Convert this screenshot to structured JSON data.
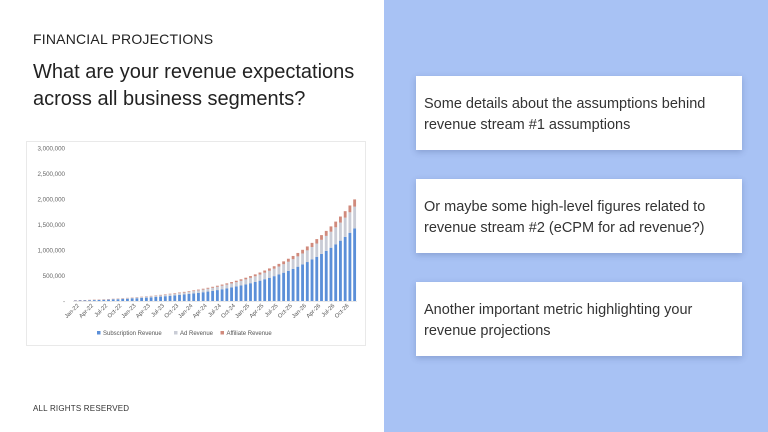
{
  "slide": {
    "kicker": "FINANCIAL PROJECTIONS",
    "title": "What are your revenue expectations across all business segments?",
    "footer": "ALL RIGHTS RESERVED"
  },
  "cards": [
    {
      "text": "Some details about the assumptions behind revenue stream #1 assumptions"
    },
    {
      "text": "Or maybe some high-level figures related to revenue stream #2 (eCPM for ad revenue?)"
    },
    {
      "text": "Another important metric highlighting your revenue projections"
    }
  ],
  "colors": {
    "background_right": "#a8c2f4",
    "subscription": "#5b8fd8",
    "ad": "#c9ccd6",
    "affiliate": "#d08a7c"
  },
  "chart_data": {
    "type": "bar",
    "stacked": true,
    "ylim": [
      0,
      3000000
    ],
    "y_ticks": [
      "3,000,000",
      "2,500,000",
      "2,000,000",
      "1,500,000",
      "1,000,000",
      "500,000",
      "-"
    ],
    "x_tick_labels": [
      "Jan-22",
      "Apr-22",
      "Jul-22",
      "Oct-22",
      "Jan-23",
      "Apr-23",
      "Jul-23",
      "Oct-23",
      "Jan-24",
      "Apr-24",
      "Jul-24",
      "Oct-24",
      "Jan-25",
      "Apr-25",
      "Jul-25",
      "Oct-25",
      "Jan-26",
      "Apr-26",
      "Jul-26",
      "Oct-26"
    ],
    "x_start": "Jan-22",
    "x_end": "Dec-26",
    "legend": [
      "Subscription Revenue",
      "Ad Revenue",
      "Affiliate Revenue"
    ],
    "legend_position": "bottom",
    "grid": false,
    "series": [
      {
        "name": "Subscription Revenue",
        "values": [
          10000,
          12000,
          14000,
          16000,
          18000,
          21000,
          24000,
          27000,
          31000,
          35000,
          39000,
          44000,
          49000,
          54000,
          60000,
          66000,
          72000,
          79000,
          86000,
          94000,
          102000,
          110000,
          119000,
          128000,
          138000,
          149000,
          160000,
          172000,
          185000,
          199000,
          214000,
          230000,
          247000,
          265000,
          284000,
          304000,
          326000,
          349000,
          373000,
          399000,
          427000,
          456000,
          487000,
          520000,
          555000,
          592000,
          631000,
          673000,
          717000,
          764000,
          814000,
          867000,
          923000,
          982000,
          1045000,
          1112000,
          1183000,
          1258000,
          1338000,
          1423000
        ]
      },
      {
        "name": "Ad Revenue",
        "values": [
          3000,
          3600,
          4200,
          4800,
          5400,
          6300,
          7200,
          8100,
          9300,
          10500,
          11700,
          13200,
          14700,
          16200,
          18000,
          19800,
          21600,
          23700,
          25800,
          28200,
          30600,
          33000,
          35700,
          38400,
          41400,
          44700,
          48000,
          51600,
          55500,
          59700,
          64200,
          69000,
          74100,
          79500,
          85200,
          91200,
          97800,
          104700,
          111900,
          119700,
          128100,
          136800,
          146100,
          156000,
          166500,
          177600,
          189300,
          201900,
          215100,
          229200,
          244200,
          260100,
          276900,
          294600,
          313500,
          333600,
          354900,
          377400,
          401400,
          426900
        ]
      },
      {
        "name": "Affiliate Revenue",
        "values": [
          1000,
          1200,
          1400,
          1600,
          1800,
          2100,
          2400,
          2700,
          3100,
          3500,
          3900,
          4400,
          4900,
          5400,
          6000,
          6600,
          7200,
          7900,
          8600,
          9400,
          10200,
          11000,
          11900,
          12800,
          13800,
          14900,
          16000,
          17200,
          18500,
          19900,
          21400,
          23000,
          24700,
          26500,
          28400,
          30400,
          32600,
          34900,
          37300,
          39900,
          42700,
          45600,
          48700,
          52000,
          55500,
          59200,
          63100,
          67300,
          71700,
          76400,
          81400,
          86700,
          92300,
          98200,
          104500,
          111200,
          118300,
          125800,
          133800,
          142300
        ]
      }
    ]
  }
}
